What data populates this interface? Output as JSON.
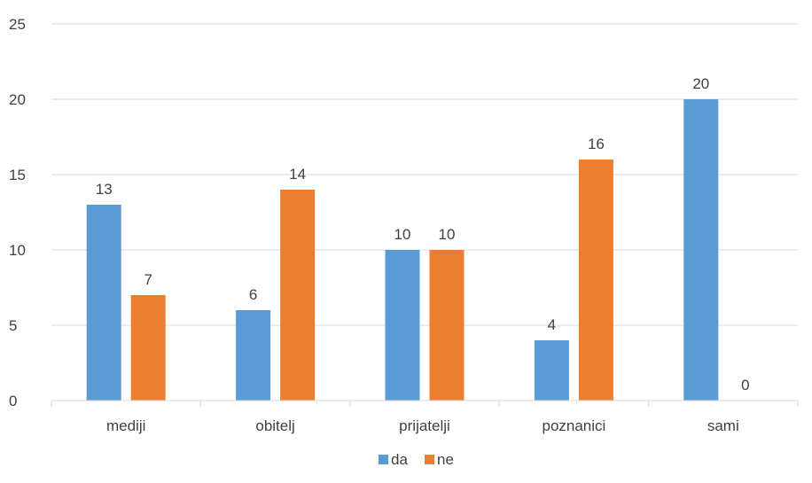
{
  "chart_data": {
    "type": "bar",
    "categories": [
      "mediji",
      "obitelj",
      "prijatelji",
      "poznanici",
      "sami"
    ],
    "series": [
      {
        "name": "da",
        "values": [
          13,
          6,
          10,
          4,
          20
        ],
        "color": "#5b9bd5"
      },
      {
        "name": "ne",
        "values": [
          7,
          14,
          10,
          16,
          0
        ],
        "color": "#ed7d31"
      }
    ],
    "y_ticks": [
      0,
      5,
      10,
      15,
      20,
      25
    ],
    "ylim": [
      0,
      25
    ],
    "grid": true,
    "legend_position": "bottom",
    "data_labels": true
  }
}
